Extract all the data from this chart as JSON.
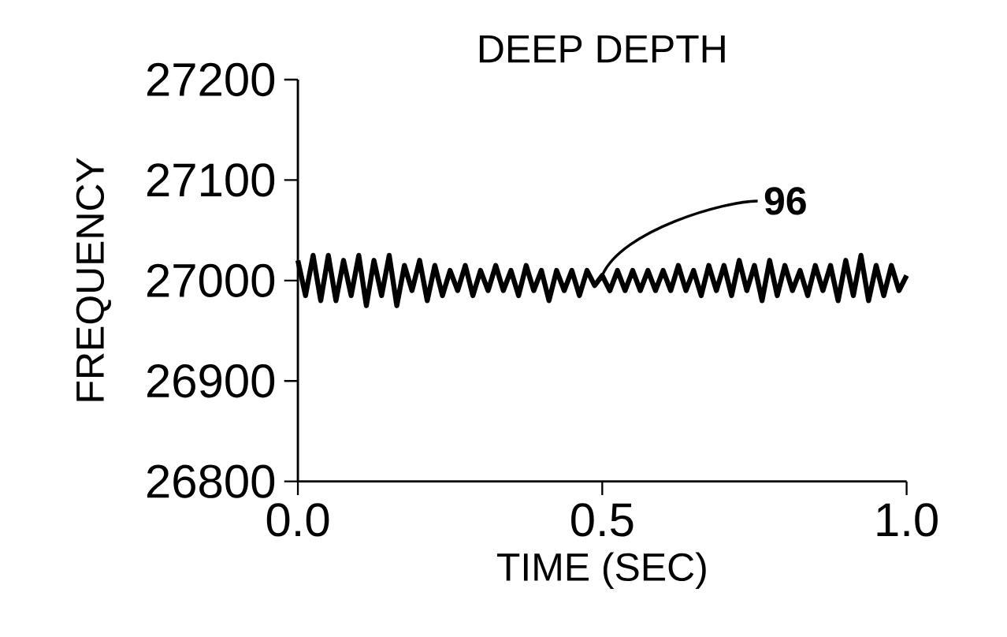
{
  "chart_data": {
    "type": "line",
    "title": "DEEP DEPTH",
    "xlabel": "TIME (SEC)",
    "ylabel": "FREQUENCY",
    "x": [
      0,
      0.0125,
      0.025,
      0.0375,
      0.05,
      0.0625,
      0.075,
      0.0875,
      0.1,
      0.1125,
      0.125,
      0.1375,
      0.15,
      0.1625,
      0.175,
      0.1875,
      0.2,
      0.2125,
      0.225,
      0.2375,
      0.25,
      0.2625,
      0.275,
      0.2875,
      0.3,
      0.3125,
      0.325,
      0.3375,
      0.35,
      0.3625,
      0.375,
      0.3875,
      0.4,
      0.4125,
      0.425,
      0.4375,
      0.45,
      0.4625,
      0.475,
      0.4875,
      0.5,
      0.5125,
      0.525,
      0.5375,
      0.55,
      0.5625,
      0.575,
      0.5875,
      0.6,
      0.6125,
      0.625,
      0.6375,
      0.65,
      0.6625,
      0.675,
      0.6875,
      0.7,
      0.7125,
      0.725,
      0.7375,
      0.75,
      0.7625,
      0.775,
      0.7875,
      0.8,
      0.8125,
      0.825,
      0.8375,
      0.85,
      0.8625,
      0.875,
      0.8875,
      0.9,
      0.9125,
      0.925,
      0.9375,
      0.95,
      0.9625,
      0.975,
      0.9875,
      1.0
    ],
    "values": [
      27020,
      26985,
      27025,
      26980,
      27025,
      26980,
      27020,
      26985,
      27025,
      26975,
      27020,
      26985,
      27025,
      26975,
      27015,
      26990,
      27020,
      26980,
      27015,
      26985,
      27010,
      26990,
      27015,
      26985,
      27010,
      26990,
      27015,
      26990,
      27010,
      26985,
      27015,
      26990,
      27010,
      26980,
      27010,
      26990,
      27010,
      26985,
      27010,
      26995,
      27005,
      26990,
      27010,
      26990,
      27010,
      26990,
      27010,
      26990,
      27010,
      26990,
      27015,
      26990,
      27010,
      26985,
      27015,
      26990,
      27015,
      26985,
      27020,
      26990,
      27015,
      26980,
      27020,
      26985,
      27015,
      26990,
      27010,
      26985,
      27015,
      26990,
      27015,
      26980,
      27020,
      26985,
      27025,
      26980,
      27015,
      26985,
      27015,
      26990,
      27005
    ],
    "color": "#000000",
    "xlim": [
      0,
      1
    ],
    "ylim": [
      26800,
      27200
    ],
    "xticks": [
      {
        "value": 0,
        "label": "0.0"
      },
      {
        "value": 0.5,
        "label": "0.5"
      },
      {
        "value": 1,
        "label": "1.0"
      }
    ],
    "yticks": [
      26800,
      26900,
      27000,
      27100,
      27200
    ],
    "annotations": [
      {
        "text": "96",
        "x": 0.5,
        "y": 27005
      }
    ]
  }
}
